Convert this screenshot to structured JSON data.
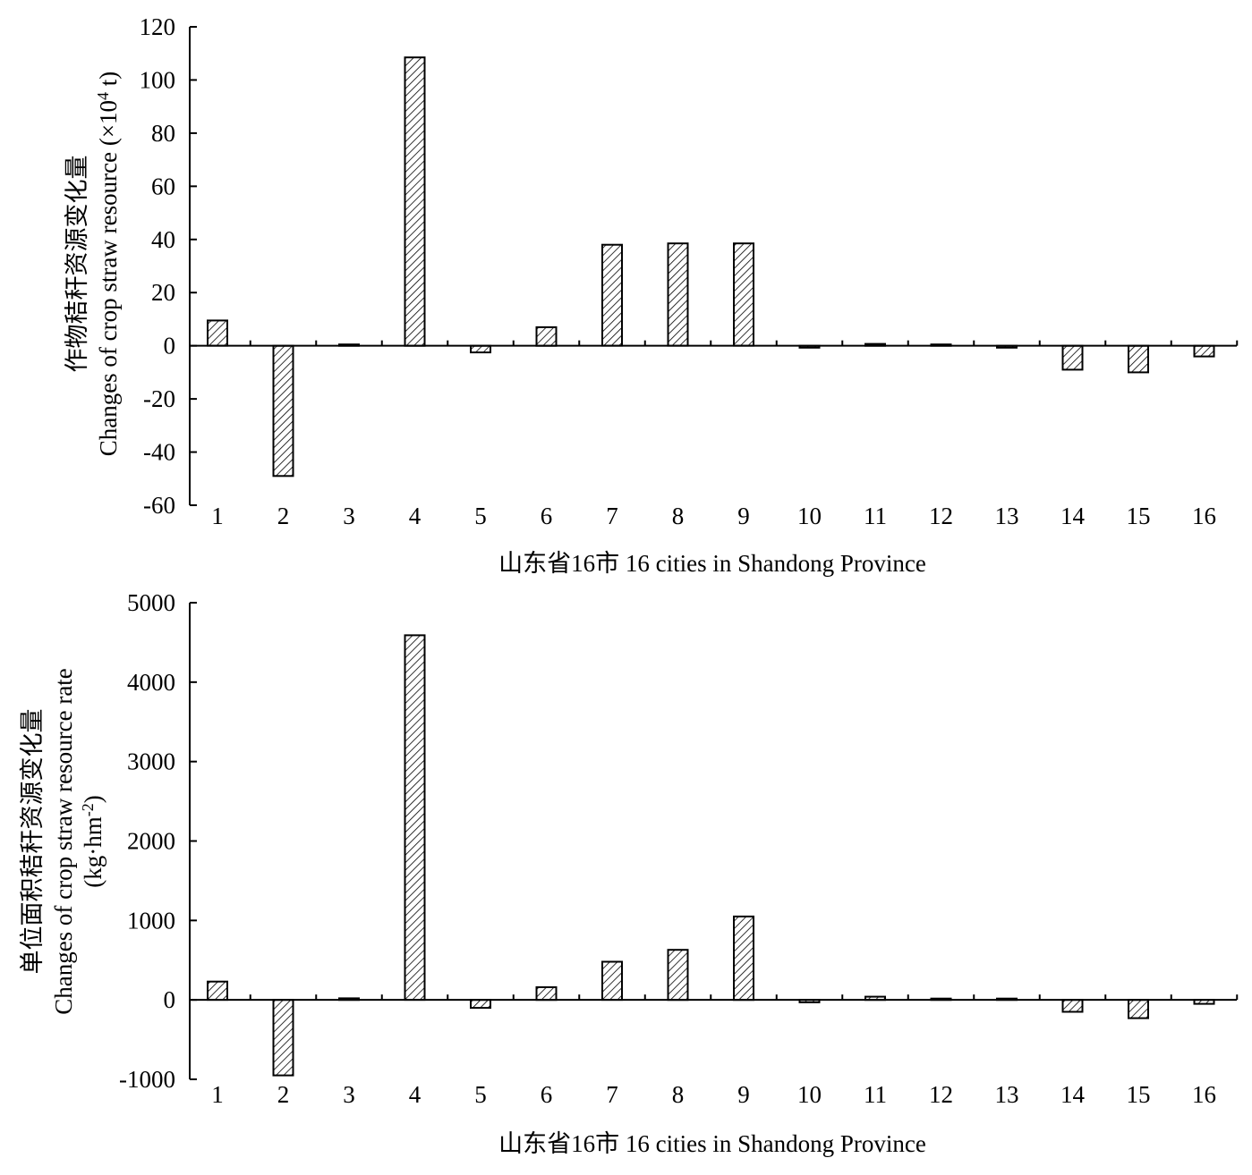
{
  "chart_data": [
    {
      "type": "bar",
      "categories": [
        "1",
        "2",
        "3",
        "4",
        "5",
        "6",
        "7",
        "8",
        "9",
        "10",
        "11",
        "12",
        "13",
        "14",
        "15",
        "16"
      ],
      "values": [
        9.5,
        -49,
        0,
        108.5,
        -2.5,
        7,
        38,
        38.5,
        38.5,
        -0.7,
        0.7,
        0,
        -0.7,
        -9,
        -10,
        -4
      ],
      "xlabel": "山东省16市 16 cities in Shandong Province",
      "ylabel_cn": "作物秸秆资源变化量",
      "ylabel_en_main": "Changes of crop straw resource (×10",
      "ylabel_en_sup": "4",
      "ylabel_en_tail": " t)",
      "yticks": [
        "120",
        "100",
        "80",
        "60",
        "40",
        "20",
        "0",
        "-20",
        "-40",
        "-60"
      ],
      "ylim": [
        -60,
        120
      ],
      "grid": false,
      "pattern": "diagonal-hatch"
    },
    {
      "type": "bar",
      "categories": [
        "1",
        "2",
        "3",
        "4",
        "5",
        "6",
        "7",
        "8",
        "9",
        "10",
        "11",
        "12",
        "13",
        "14",
        "15",
        "16"
      ],
      "values": [
        230,
        -950,
        20,
        4590,
        -100,
        160,
        480,
        630,
        1050,
        -30,
        40,
        0,
        0,
        -150,
        -230,
        -50
      ],
      "xlabel": "山东省16市 16 cities in Shandong Province",
      "ylabel_cn": "单位面积秸秆资源变化量",
      "ylabel_en_main": "Changes of crop straw resource rate",
      "ylabel_unit_main": "(kg·hm",
      "ylabel_unit_sup": "-2",
      "ylabel_unit_tail": ")",
      "yticks": [
        "5000",
        "4000",
        "3000",
        "2000",
        "1000",
        "0",
        "-1000"
      ],
      "ylim": [
        -1000,
        5000
      ],
      "grid": false,
      "pattern": "diagonal-hatch"
    }
  ]
}
